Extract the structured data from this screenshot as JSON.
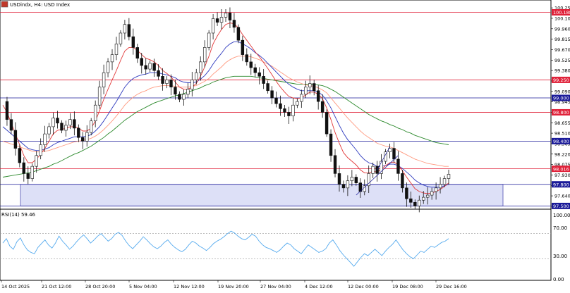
{
  "header": {
    "title": "USDindx, H4:  USD Index"
  },
  "rsi": {
    "label": "RSI(14) 59.46",
    "max_label": "100.00",
    "upper_label": "70.00",
    "lower_label": "30.00",
    "min_label": "0.00",
    "levels": [
      70,
      30
    ],
    "values": [
      55,
      62,
      50,
      45,
      57,
      63,
      52,
      44,
      40,
      38,
      48,
      54,
      60,
      52,
      47,
      55,
      66,
      58,
      52,
      45,
      50,
      57,
      63,
      68,
      62,
      55,
      60,
      66,
      70,
      64,
      58,
      62,
      69,
      72,
      67,
      58,
      51,
      46,
      52,
      58,
      65,
      60,
      54,
      49,
      46,
      50,
      56,
      60,
      53,
      48,
      44,
      41,
      45,
      52,
      58,
      55,
      50,
      47,
      43,
      48,
      54,
      58,
      61,
      65,
      70,
      74,
      71,
      66,
      62,
      60,
      64,
      69,
      66,
      58,
      52,
      48,
      46,
      43,
      40,
      44,
      50,
      55,
      52,
      46,
      42,
      38,
      45,
      52,
      48,
      44,
      40,
      42,
      46,
      55,
      60,
      52,
      43,
      36,
      30,
      24,
      18,
      25,
      32,
      38,
      35,
      40,
      45,
      40,
      35,
      42,
      48,
      53,
      60,
      52,
      44,
      38,
      33,
      30,
      36,
      42,
      40,
      45,
      50,
      48,
      52,
      56,
      58,
      62
    ]
  },
  "colors": {
    "candle": "#111111",
    "ema_fast": "#e23a3a",
    "ema_mid": "#2f3bbf",
    "ema_slow": "#ff9a80",
    "ema_long": "#2d8a2d",
    "level_red": "#e0223a",
    "level_blue": "#1a1a99",
    "zone_fill": "#dde0f7",
    "rsi_line": "#55aaee",
    "price_tag_red": "#e0223a",
    "price_tag_blue": "#1a1a99"
  },
  "chart_data": {
    "type": "line",
    "title": "USDindx, H4: USD Index",
    "ylim": [
      97.5,
      100.3
    ],
    "y_tick_labels": [
      "100.250",
      "100.105",
      "99.960",
      "99.815",
      "99.670",
      "99.525",
      "99.380",
      "99.235",
      "99.090",
      "98.945",
      "98.800",
      "98.655",
      "98.510",
      "98.365",
      "98.220",
      "98.075",
      "97.930",
      "97.785",
      "97.640",
      "97.495"
    ],
    "x_tick_labels": [
      "14 Oct 2025",
      "21 Oct 12:00",
      "28 Oct 20:00",
      "5 Nov 04:00",
      "12 Nov 12:00",
      "19 Nov 20:00",
      "27 Nov 04:00",
      "4 Dec 12:00",
      "12 Dec 00:00",
      "19 Dec 08:00",
      "29 Dec 16:00"
    ],
    "horizontal_levels": [
      {
        "value": 100.188,
        "label": "100.188",
        "color": "red"
      },
      {
        "value": 99.25,
        "label": "99.250",
        "color": "red"
      },
      {
        "value": 99.0,
        "label": "99.000",
        "color": "blue"
      },
      {
        "value": 98.8,
        "label": "98.800",
        "color": "red"
      },
      {
        "value": 98.4,
        "label": "98.400",
        "color": "blue"
      },
      {
        "value": 98.016,
        "label": "98.016",
        "color": "red"
      },
      {
        "value": 97.8,
        "label": "97.800",
        "color": "blue"
      },
      {
        "value": 97.5,
        "label": "97.500",
        "color": "blue"
      }
    ],
    "zone": {
      "from": 97.5,
      "to": 97.8
    },
    "close_series": [
      98.95,
      98.7,
      98.55,
      98.3,
      98.1,
      97.95,
      97.88,
      98.05,
      98.2,
      98.35,
      98.5,
      98.6,
      98.72,
      98.65,
      98.55,
      98.62,
      98.7,
      98.58,
      98.45,
      98.4,
      98.52,
      98.68,
      98.9,
      99.15,
      99.35,
      99.5,
      99.6,
      99.75,
      99.9,
      100.02,
      99.85,
      99.7,
      99.55,
      99.45,
      99.4,
      99.48,
      99.38,
      99.3,
      99.2,
      99.25,
      99.15,
      99.05,
      98.98,
      99.05,
      99.12,
      99.25,
      99.35,
      99.5,
      99.7,
      99.9,
      100.1,
      100.05,
      100.12,
      100.18,
      100.08,
      99.98,
      99.8,
      99.6,
      99.5,
      99.42,
      99.35,
      99.3,
      99.2,
      99.1,
      99.0,
      98.92,
      98.85,
      98.8,
      98.75,
      98.9,
      98.95,
      99.05,
      99.15,
      99.2,
      99.1,
      98.95,
      98.8,
      98.5,
      98.2,
      97.95,
      97.8,
      97.75,
      97.85,
      97.9,
      97.82,
      97.7,
      97.78,
      97.95,
      98.05,
      97.95,
      98.12,
      98.25,
      98.3,
      98.15,
      97.95,
      97.75,
      97.6,
      97.55,
      97.5,
      97.58,
      97.62,
      97.65,
      97.7,
      97.75,
      97.8,
      97.88,
      97.94
    ],
    "ema_fast": [
      98.9,
      98.8,
      98.65,
      98.5,
      98.35,
      98.2,
      98.1,
      98.1,
      98.15,
      98.22,
      98.3,
      98.4,
      98.5,
      98.55,
      98.56,
      98.58,
      98.6,
      98.6,
      98.58,
      98.54,
      98.54,
      98.58,
      98.68,
      98.82,
      98.98,
      99.12,
      99.25,
      99.38,
      99.52,
      99.65,
      99.7,
      99.7,
      99.66,
      99.6,
      99.55,
      99.53,
      99.5,
      99.45,
      99.38,
      99.34,
      99.29,
      99.22,
      99.15,
      99.12,
      99.12,
      99.15,
      99.2,
      99.3,
      99.43,
      99.58,
      99.75,
      99.86,
      99.95,
      100.02,
      100.04,
      100.03,
      99.97,
      99.88,
      99.8,
      99.72,
      99.64,
      99.57,
      99.49,
      99.41,
      99.32,
      99.23,
      99.15,
      99.08,
      99.02,
      99.0,
      98.99,
      99.0,
      99.04,
      99.08,
      99.08,
      99.05,
      98.99,
      98.86,
      98.7,
      98.52,
      98.37,
      98.24,
      98.17,
      98.12,
      98.07,
      98.0,
      97.96,
      97.96,
      97.98,
      97.97,
      98.01,
      98.06,
      98.1,
      98.11,
      98.07,
      97.99,
      97.9,
      97.82,
      97.74,
      97.7,
      97.68,
      97.67,
      97.68,
      97.7,
      97.73,
      97.77,
      97.82
    ],
    "ema_mid": [
      98.6,
      98.55,
      98.5,
      98.45,
      98.4,
      98.35,
      98.3,
      98.28,
      98.27,
      98.27,
      98.29,
      98.31,
      98.35,
      98.38,
      98.4,
      98.42,
      98.44,
      98.46,
      98.46,
      98.46,
      98.47,
      98.49,
      98.54,
      98.6,
      98.68,
      98.77,
      98.86,
      98.95,
      99.05,
      99.15,
      99.22,
      99.27,
      99.3,
      99.32,
      99.33,
      99.35,
      99.35,
      99.35,
      99.33,
      99.32,
      99.3,
      99.28,
      99.24,
      99.22,
      99.21,
      99.21,
      99.22,
      99.26,
      99.31,
      99.38,
      99.47,
      99.55,
      99.62,
      99.7,
      99.75,
      99.78,
      99.78,
      99.75,
      99.72,
      99.68,
      99.63,
      99.59,
      99.54,
      99.48,
      99.42,
      99.36,
      99.3,
      99.24,
      99.19,
      99.15,
      99.12,
      99.1,
      99.1,
      99.1,
      99.1,
      99.08,
      99.04,
      98.96,
      98.86,
      98.74,
      98.62,
      98.51,
      98.42,
      98.35,
      98.28,
      98.2,
      98.14,
      98.1,
      98.08,
      98.05,
      98.05,
      98.06,
      98.08,
      98.08,
      98.06,
      98.02,
      97.97,
      97.92,
      97.86,
      97.82,
      97.79,
      97.77,
      97.76,
      97.76,
      97.76,
      97.78,
      97.8
    ],
    "ema_slow": [
      98.4,
      98.38,
      98.36,
      98.34,
      98.32,
      98.3,
      98.28,
      98.26,
      98.25,
      98.25,
      98.26,
      98.27,
      98.29,
      98.31,
      98.33,
      98.35,
      98.37,
      98.39,
      98.4,
      98.41,
      98.42,
      98.44,
      98.47,
      98.51,
      98.56,
      98.62,
      98.68,
      98.75,
      98.82,
      98.9,
      98.96,
      99.01,
      99.05,
      99.08,
      99.1,
      99.13,
      99.15,
      99.16,
      99.17,
      99.17,
      99.17,
      99.16,
      99.15,
      99.15,
      99.15,
      99.16,
      99.17,
      99.2,
      99.23,
      99.27,
      99.33,
      99.38,
      99.43,
      99.49,
      99.53,
      99.56,
      99.58,
      99.58,
      99.58,
      99.57,
      99.55,
      99.53,
      99.5,
      99.47,
      99.44,
      99.4,
      99.36,
      99.32,
      99.28,
      99.25,
      99.22,
      99.2,
      99.18,
      99.17,
      99.16,
      99.14,
      99.11,
      99.07,
      99.0,
      98.93,
      98.86,
      98.79,
      98.72,
      98.66,
      98.6,
      98.54,
      98.49,
      98.45,
      98.41,
      98.37,
      98.35,
      98.33,
      98.32,
      98.3,
      98.27,
      98.24,
      98.21,
      98.18,
      98.15,
      98.13,
      98.11,
      98.09,
      98.08,
      98.07,
      98.06,
      98.05,
      98.05
    ],
    "ema_long": [
      97.9,
      97.91,
      97.92,
      97.93,
      97.94,
      97.95,
      97.96,
      97.97,
      97.99,
      98.01,
      98.03,
      98.05,
      98.08,
      98.1,
      98.13,
      98.16,
      98.19,
      98.22,
      98.24,
      98.27,
      98.3,
      98.33,
      98.37,
      98.41,
      98.45,
      98.5,
      98.54,
      98.59,
      98.64,
      98.69,
      98.73,
      98.77,
      98.81,
      98.84,
      98.87,
      98.9,
      98.93,
      98.95,
      98.97,
      98.99,
      99.01,
      99.03,
      99.04,
      99.06,
      99.08,
      99.1,
      99.12,
      99.14,
      99.17,
      99.19,
      99.22,
      99.24,
      99.26,
      99.28,
      99.29,
      99.3,
      99.3,
      99.3,
      99.3,
      99.3,
      99.29,
      99.28,
      99.27,
      99.26,
      99.25,
      99.24,
      99.23,
      99.22,
      99.21,
      99.2,
      99.19,
      99.19,
      99.19,
      99.19,
      99.19,
      99.18,
      99.17,
      99.15,
      99.12,
      99.09,
      99.05,
      99.01,
      98.97,
      98.93,
      98.89,
      98.85,
      98.81,
      98.77,
      98.74,
      98.71,
      98.68,
      98.66,
      98.63,
      98.61,
      98.58,
      98.56,
      98.53,
      98.51,
      98.48,
      98.46,
      98.44,
      98.42,
      98.4,
      98.38,
      98.37,
      98.36,
      98.35
    ]
  }
}
